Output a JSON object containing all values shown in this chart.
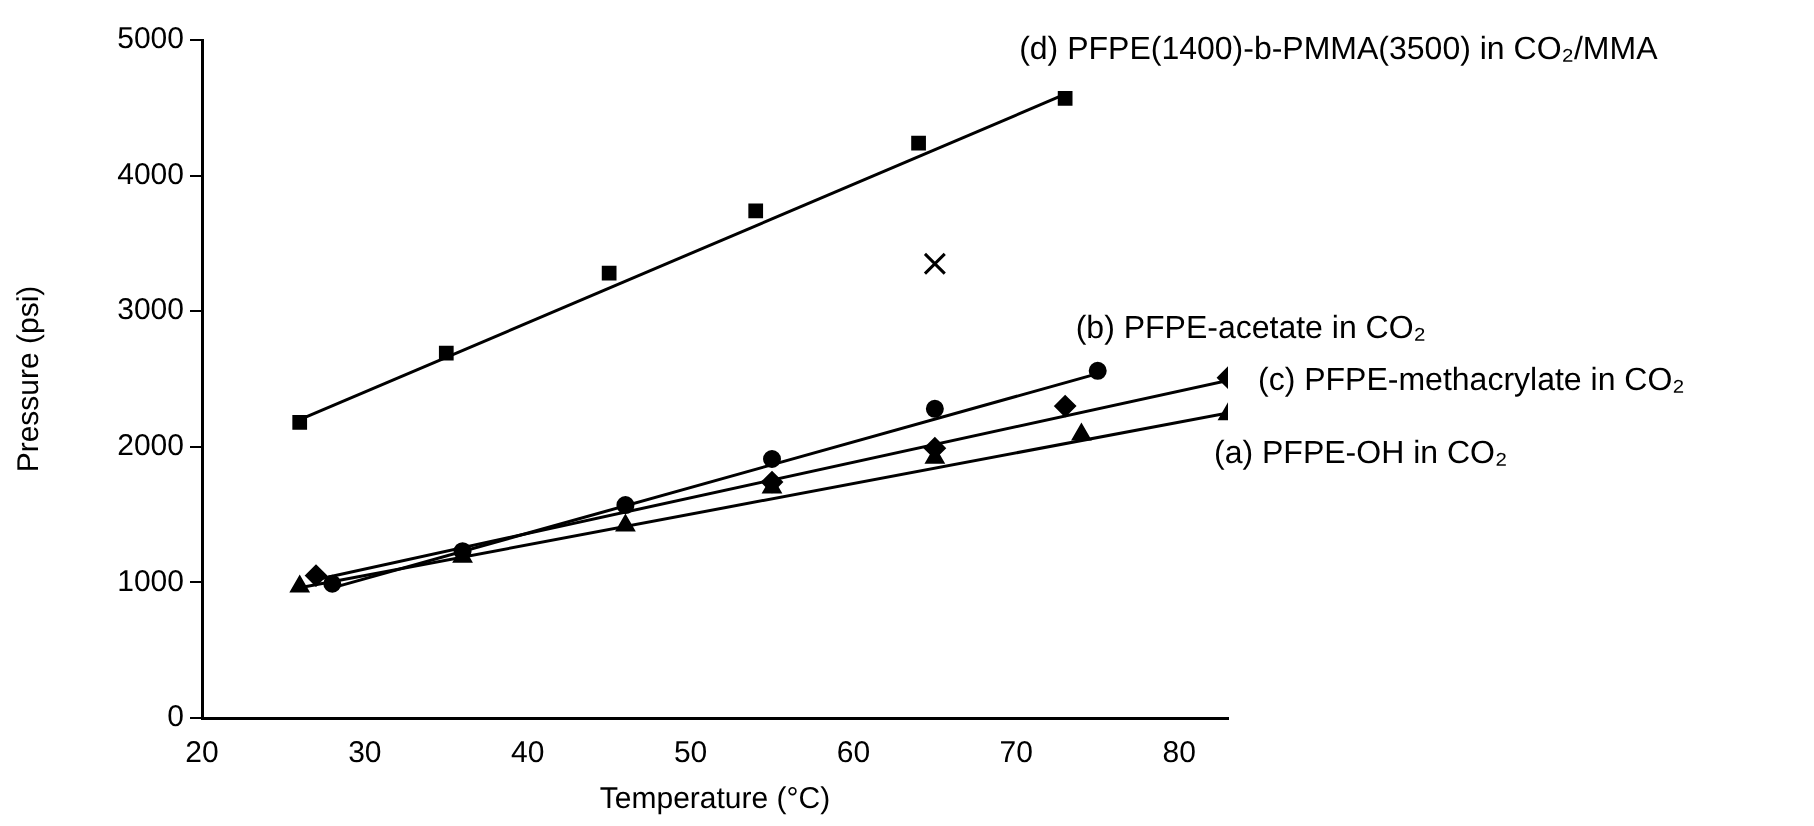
{
  "chart_data": {
    "type": "scatter",
    "xlabel": "Temperature (°C)",
    "ylabel": "Pressure (psi)",
    "xlim": [
      20,
      83
    ],
    "xticks": [
      20,
      30,
      40,
      50,
      60,
      70,
      80
    ],
    "ylim": [
      0,
      5000
    ],
    "yticks": [
      0,
      1000,
      2000,
      3000,
      4000,
      5000
    ],
    "grid": false,
    "legend": false,
    "series": [
      {
        "name": "(a) PFPE-OH in CO₂",
        "color": "#000000",
        "marker": "triangle",
        "x": [
          26,
          36,
          46,
          55,
          65,
          74,
          83
        ],
        "values": [
          970,
          1190,
          1420,
          1700,
          1920,
          2090,
          2240
        ]
      },
      {
        "name": "(b) PFPE-acetate in CO₂",
        "color": "#000000",
        "marker": "circle",
        "x": [
          28,
          36,
          46,
          55,
          65,
          75
        ],
        "values": [
          990,
          1230,
          1570,
          1910,
          2280,
          2560
        ]
      },
      {
        "name": "(c) PFPE-methacrylate in CO₂",
        "color": "#000000",
        "marker": "diamond",
        "x": [
          27,
          36,
          46,
          55,
          65,
          73,
          83
        ],
        "values": [
          1050,
          null,
          null,
          1740,
          1990,
          2300,
          2510
        ]
      },
      {
        "name": "(d) PFPE(1400)-b-PMMA(3500) in CO₂/MMA",
        "color": "#000000",
        "marker": "square",
        "x": [
          26,
          35,
          45,
          54,
          64,
          73
        ],
        "values": [
          2180,
          2690,
          3280,
          3740,
          4240,
          4570
        ]
      },
      {
        "color": "#000000",
        "marker": "cross",
        "x": [
          65
        ],
        "values": [
          3350
        ]
      },
      {
        "type": "line",
        "color": "#000000",
        "marker": "none",
        "x": [
          26,
          83
        ],
        "values": [
          960,
          2250
        ]
      },
      {
        "type": "line",
        "color": "#000000",
        "marker": "none",
        "x": [
          28,
          75
        ],
        "values": [
          960,
          2540
        ]
      },
      {
        "type": "line",
        "color": "#000000",
        "marker": "none",
        "x": [
          27,
          83
        ],
        "values": [
          1020,
          2490
        ]
      },
      {
        "type": "line",
        "color": "#000000",
        "marker": "none",
        "x": [
          26,
          73
        ],
        "values": [
          2200,
          4600
        ]
      }
    ]
  }
}
